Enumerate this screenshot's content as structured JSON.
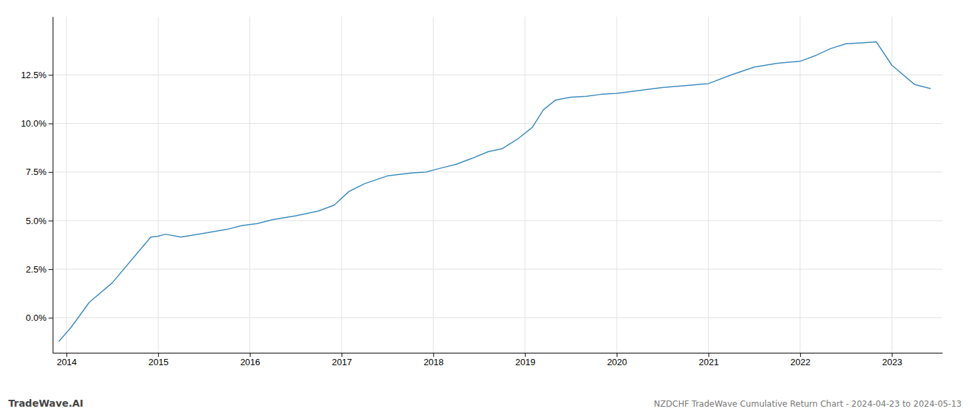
{
  "chart_data": {
    "type": "line",
    "title": "NZDCHF TradeWave Cumulative Return Chart - 2024-04-23 to 2024-05-13",
    "annotations": [
      "TradeWave.AI"
    ],
    "color": "#3a8abf",
    "grid": true,
    "x": [
      2013.92,
      2014.05,
      2014.25,
      2014.5,
      2014.75,
      2014.92,
      2015.0,
      2015.08,
      2015.25,
      2015.5,
      2015.75,
      2015.92,
      2016.08,
      2016.25,
      2016.5,
      2016.75,
      2016.92,
      2017.08,
      2017.25,
      2017.5,
      2017.75,
      2017.92,
      2018.08,
      2018.25,
      2018.42,
      2018.6,
      2018.75,
      2018.92,
      2019.08,
      2019.2,
      2019.33,
      2019.5,
      2019.67,
      2019.83,
      2020.0,
      2020.25,
      2020.5,
      2020.75,
      2021.0,
      2021.25,
      2021.5,
      2021.75,
      2022.0,
      2022.17,
      2022.33,
      2022.5,
      2022.67,
      2022.83,
      2023.0,
      2023.25,
      2023.42
    ],
    "values": [
      -1.2,
      -0.5,
      0.8,
      1.8,
      3.2,
      4.15,
      4.2,
      4.3,
      4.15,
      4.35,
      4.55,
      4.75,
      4.85,
      5.05,
      5.25,
      5.5,
      5.8,
      6.5,
      6.9,
      7.3,
      7.45,
      7.5,
      7.7,
      7.9,
      8.2,
      8.55,
      8.7,
      9.2,
      9.8,
      10.7,
      11.2,
      11.35,
      11.4,
      11.5,
      11.55,
      11.7,
      11.85,
      11.95,
      12.05,
      12.5,
      12.9,
      13.1,
      13.2,
      13.5,
      13.85,
      14.1,
      14.15,
      14.2,
      13.0,
      12.0,
      11.8
    ],
    "xlim": [
      2013.85,
      2023.55
    ],
    "ylim": [
      -1.8,
      15.5
    ],
    "xticks": [
      2014,
      2015,
      2016,
      2017,
      2018,
      2019,
      2020,
      2021,
      2022,
      2023
    ],
    "yticks": [
      {
        "value": 0.0,
        "label": "0.0%"
      },
      {
        "value": 2.5,
        "label": "2.5%"
      },
      {
        "value": 5.0,
        "label": "5.0%"
      },
      {
        "value": 7.5,
        "label": "7.5%"
      },
      {
        "value": 10.0,
        "label": "10.0%"
      },
      {
        "value": 12.5,
        "label": "12.5%"
      }
    ]
  }
}
